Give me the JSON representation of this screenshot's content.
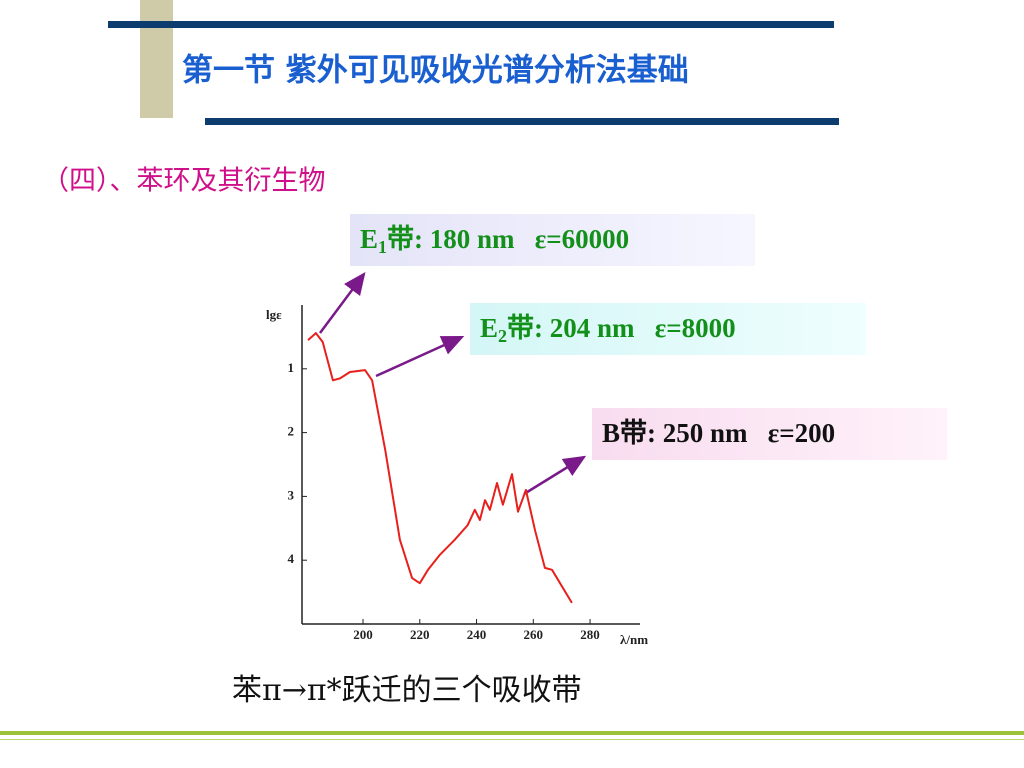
{
  "slide": {
    "title": "第一节  紫外可见吸收光谱分析法基础",
    "section": "（四）、苯环及其衍生物",
    "caption": "苯π→π*跃迁的三个吸收带"
  },
  "chart_data": {
    "type": "line",
    "y_label": "lgε",
    "x_label": "λ/nm",
    "x": [
      180.6,
      183.4,
      185.8,
      189.4,
      191.9,
      195.4,
      200.7,
      203.2,
      207.8,
      213,
      217.3,
      220,
      222.9,
      227,
      232.3,
      236.9,
      239.4,
      241.2,
      243,
      244.7,
      247.2,
      249.3,
      252.5,
      254.6,
      257.4,
      260.6,
      264.1,
      266.6,
      273.6
    ],
    "series": [
      {
        "color": "#e8201c",
        "values": [
          0.55,
          0.44,
          0.58,
          1.18,
          1.15,
          1.05,
          1.02,
          1.18,
          2.27,
          3.68,
          4.28,
          4.36,
          4.15,
          3.92,
          3.68,
          3.45,
          3.21,
          3.37,
          3.06,
          3.21,
          2.79,
          3.13,
          2.65,
          3.24,
          2.9,
          3.53,
          4.12,
          4.15,
          4.67
        ]
      }
    ],
    "xlim": [
      178.5,
      297.6
    ],
    "xticks": [
      200,
      220,
      240,
      260,
      280
    ],
    "ylim": [
      5,
      0
    ],
    "yticks": [
      1,
      2,
      3,
      4
    ],
    "annotations": [
      {
        "lead": "E",
        "sub": "1",
        "text": "带: 180 nm   ε=60000"
      },
      {
        "lead": "E",
        "sub": "2",
        "text": "带: 204 nm   ε=8000"
      },
      {
        "text": "B带: 250 nm   ε=200"
      }
    ]
  }
}
